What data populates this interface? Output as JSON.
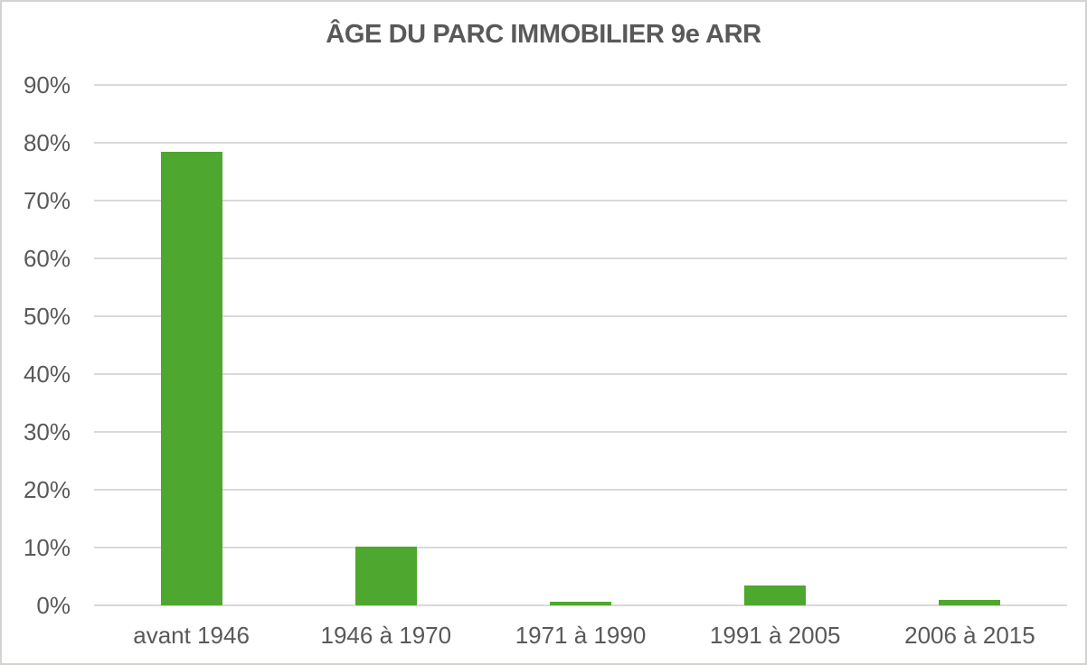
{
  "chart_data": {
    "type": "bar",
    "title": "ÂGE DU PARC IMMOBILIER 9e ARR",
    "categories": [
      "avant 1946",
      "1946 à 1970",
      "1971 à 1990",
      "1991 à 2005",
      "2006 à 2015"
    ],
    "values": [
      78.4,
      10.1,
      0.6,
      3.4,
      0.9
    ],
    "xlabel": "",
    "ylabel": "",
    "ylim": [
      0,
      90
    ],
    "ytick_step": 10,
    "ytick_labels": [
      "0%",
      "10%",
      "20%",
      "30%",
      "40%",
      "50%",
      "60%",
      "70%",
      "80%",
      "90%"
    ],
    "grid": true,
    "legend_position": "none",
    "colors": {
      "bar": "#4ea72e",
      "text": "#595959",
      "gridline": "#d9d9d9",
      "border": "#d3d3d1",
      "background": "#ffffff"
    }
  }
}
